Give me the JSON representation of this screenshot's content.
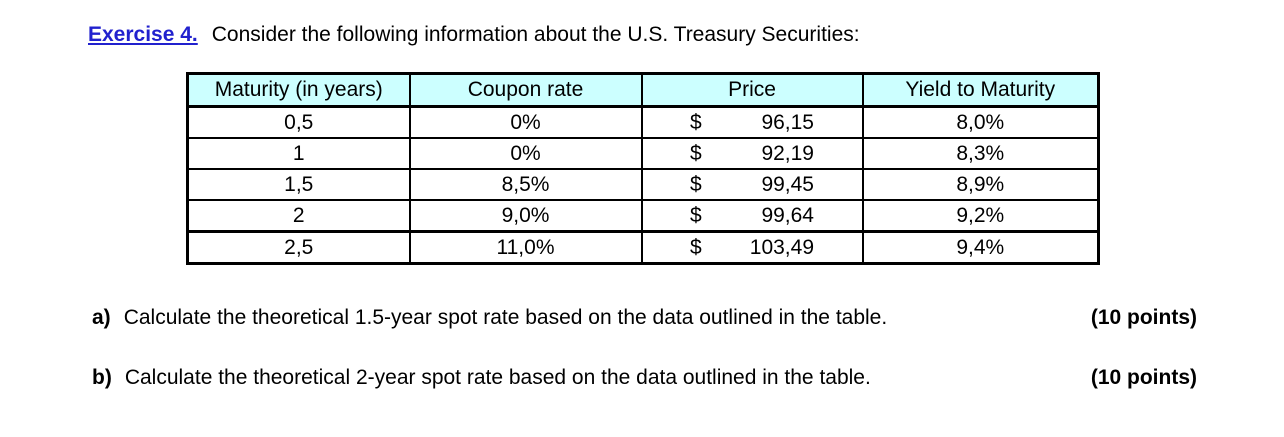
{
  "heading": {
    "label": "Exercise 4.",
    "text": "Consider the following information about the U.S. Treasury Securities:"
  },
  "colors": {
    "heading_blue": "#2121CE",
    "table_header_bg": "#CCFFFF"
  },
  "table": {
    "currency_symbol": "$",
    "headers": [
      "Maturity (in years)",
      "Coupon rate",
      "Price",
      "Yield to Maturity"
    ],
    "rows": [
      {
        "maturity": "0,5",
        "coupon": "0%",
        "price": "96,15",
        "ytm": "8,0%"
      },
      {
        "maturity": "1",
        "coupon": "0%",
        "price": "92,19",
        "ytm": "8,3%"
      },
      {
        "maturity": "1,5",
        "coupon": "8,5%",
        "price": "99,45",
        "ytm": "8,9%"
      },
      {
        "maturity": "2",
        "coupon": "9,0%",
        "price": "99,64",
        "ytm": "9,2%"
      },
      {
        "maturity": "2,5",
        "coupon": "11,0%",
        "price": "103,49",
        "ytm": "9,4%"
      }
    ]
  },
  "questions": [
    {
      "label": "a)",
      "text": "Calculate the theoretical 1.5-year spot rate based on the data outlined in the table.",
      "points": "(10 points)"
    },
    {
      "label": "b)",
      "text": "Calculate the theoretical 2-year spot rate based on the data outlined in the table.",
      "points": "(10 points)"
    }
  ]
}
